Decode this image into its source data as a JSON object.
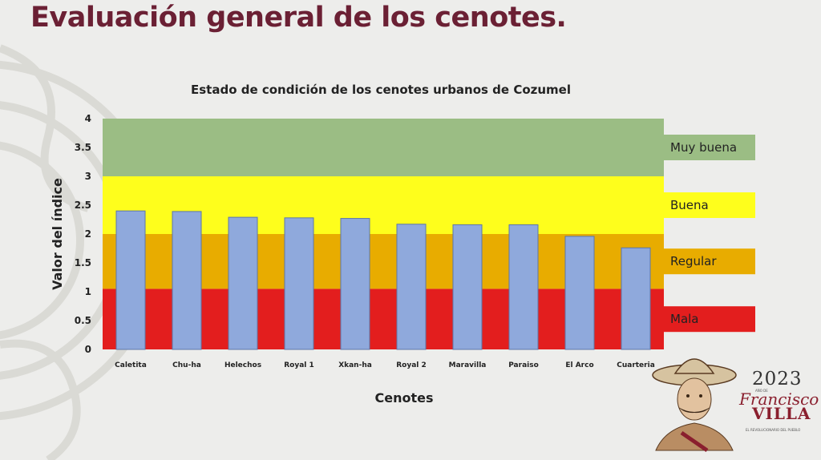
{
  "slide": {
    "title": "Evaluación general de los cenotes."
  },
  "chart_data": {
    "type": "bar",
    "title": "Estado de condición de los cenotes urbanos de Cozumel",
    "xlabel": "Cenotes",
    "ylabel": "Valor del índice",
    "ylim": [
      0,
      4
    ],
    "yticks": [
      "0",
      "0.5",
      "1",
      "1.5",
      "2",
      "2.5",
      "3",
      "3.5",
      "4"
    ],
    "categories": [
      "Caletita",
      "Chu-ha",
      "Helechos",
      "Royal 1",
      "Xkan-ha",
      "Royal 2",
      "Maravilla",
      "Paraiso",
      "El Arco",
      "Cuarteria"
    ],
    "values": [
      2.4,
      2.39,
      2.29,
      2.28,
      2.27,
      2.17,
      2.16,
      2.16,
      1.96,
      1.76
    ],
    "bar_color": "#8fa9dc",
    "bands": [
      {
        "label": "Mala",
        "from": 0,
        "to": 1.05,
        "color": "#e31e1e"
      },
      {
        "label": "Regular",
        "from": 1.05,
        "to": 2.0,
        "color": "#e8ac00"
      },
      {
        "label": "Buena",
        "from": 2.0,
        "to": 3.0,
        "color": "#fefe1c"
      },
      {
        "label": "Muy buena",
        "from": 3.0,
        "to": 4.0,
        "color": "#9bbd84"
      }
    ],
    "grid": false,
    "legend": "none"
  },
  "logo": {
    "year": "2023",
    "year_sub": "AÑO DE",
    "name1": "Francisco",
    "name2": "VILLA",
    "motto": "EL REVOLUCIONARIO DEL PUEBLO"
  }
}
